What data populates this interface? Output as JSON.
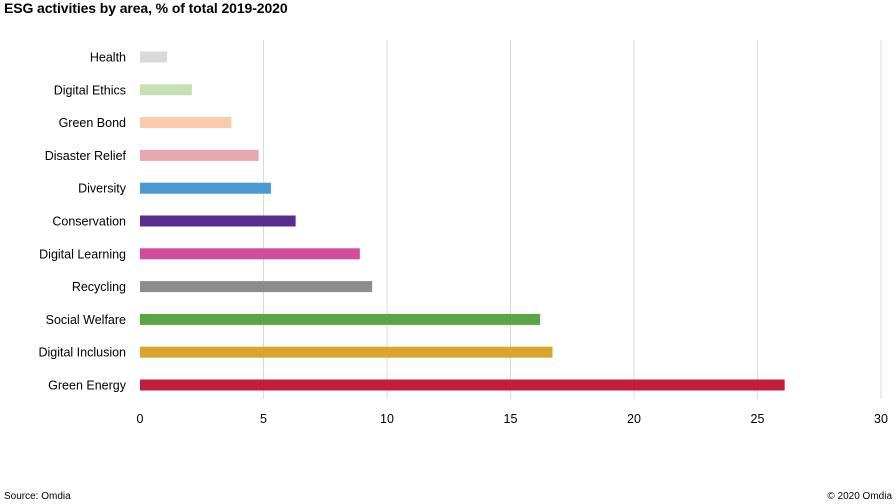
{
  "title": "ESG activities by area, % of total 2019-2020",
  "footer": {
    "source": "Source: Omdia",
    "copyright": "© 2020 Omdia"
  },
  "chart_data": {
    "type": "bar",
    "orientation": "horizontal",
    "categories": [
      "Health",
      "Digital Ethics",
      "Green Bond",
      "Disaster Relief",
      "Diversity",
      "Conservation",
      "Digital Learning",
      "Recycling",
      "Social Welfare",
      "Digital Inclusion",
      "Green Energy"
    ],
    "values": [
      1.1,
      2.1,
      3.7,
      4.8,
      5.3,
      6.3,
      8.9,
      9.4,
      16.2,
      16.7,
      26.1
    ],
    "colors": [
      "#d9d9d9",
      "#c5e0b4",
      "#f8cbad",
      "#e6a8ad",
      "#4a98d6",
      "#5a2d91",
      "#d44a9c",
      "#8c8c8c",
      "#5aa546",
      "#daa52c",
      "#c11e3c"
    ],
    "xlim": [
      0,
      30
    ],
    "xticks": [
      0,
      5,
      10,
      15,
      20,
      25,
      30
    ],
    "grid": true,
    "legend": "none"
  }
}
